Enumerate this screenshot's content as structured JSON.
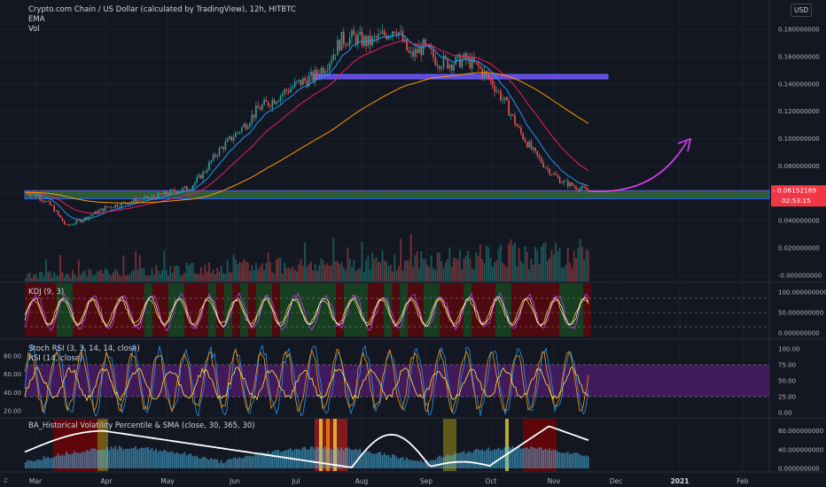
{
  "header": {
    "title": "Crypto.com Chain / US Dollar (calculated by TradingView), 12h, HITBTC",
    "ema_label": "EMA",
    "vol_label": "Vol",
    "currency_button": "USD"
  },
  "price_tag": {
    "price": "0.06152189",
    "countdown": "02:53:15"
  },
  "left_corner_label": "Z",
  "colors": {
    "background": "#131722",
    "grid": "#1e222d",
    "up": "#26a69a",
    "down": "#ef5350",
    "price_tag": "#f23645",
    "purple_zone": "#7b1fa2",
    "support_zone": "#4caf50",
    "resistance_line": "#7c4dff",
    "arrow": "#e040fb",
    "ema_fast": "#2196f3",
    "ema_mid": "#e91e63",
    "ema_slow": "#ff9800",
    "hv_line": "#ffffff",
    "stoch_k": "#2196f3",
    "stoch_d": "#ff9800",
    "rsi_line": "#ffeb3b",
    "kdj_k": "#ffffff",
    "kdj_d": "#ffeb3b",
    "kdj_j": "#e040fb"
  },
  "chart_data": [
    {
      "type": "line",
      "title": "Crypto.com Chain / US Dollar (calculated by TradingView), 12h, HITBTC",
      "x_axis": {
        "ticks": [
          "Mar",
          "Apr",
          "May",
          "Jun",
          "Jul",
          "Aug",
          "Sep",
          "Oct",
          "Nov",
          "Dec",
          "2021",
          "Feb"
        ]
      },
      "y_axis": {
        "ticks": [
          "0.180000000",
          "0.160000000",
          "0.140000000",
          "0.120000000",
          "0.100000000",
          "0.080000000",
          "0.060000000",
          "0.040000000",
          "0.020000000",
          "-0.000000000"
        ],
        "ylim": [
          0,
          0.19
        ]
      },
      "series": [
        {
          "name": "",
          "values": [
            0.061,
            0.058,
            0.05,
            0.036,
            0.04,
            0.045,
            0.05,
            0.052,
            0.055,
            0.056,
            0.059,
            0.062,
            0.064,
            0.075,
            0.09,
            0.1,
            0.11,
            0.122,
            0.128,
            0.135,
            0.141,
            0.145,
            0.155,
            0.172,
            0.174,
            0.17,
            0.175,
            0.182,
            0.16,
            0.167,
            0.157,
            0.155,
            0.158,
            0.152,
            0.141,
            0.125,
            0.105,
            0.09,
            0.078,
            0.069,
            0.065,
            0.062
          ]
        }
      ],
      "annotations": {
        "resistance_level": 0.145,
        "support_zone": [
          0.056,
          0.062
        ]
      }
    },
    {
      "type": "line",
      "title": "KDJ (9, 3)",
      "y_axis": {
        "ticks": [
          "100.000000000",
          "50.000000000",
          "0.000000000"
        ],
        "ylim": [
          -5,
          110
        ]
      }
    },
    {
      "type": "line",
      "title": "Stoch RSI (3, 3, 14, 14, close)",
      "subtitle": "RSI (14, close)",
      "y_axis": {
        "left_ticks": [
          "80.00",
          "60.00",
          "40.00",
          "20.00"
        ],
        "right_ticks": [
          "100.00",
          "75.00",
          "50.00",
          "25.00",
          "0.00"
        ]
      }
    },
    {
      "type": "area",
      "title": "BA_Historical Volatility Percentile & SMA (close, 30, 365, 30)",
      "y_axis": {
        "ticks": [
          "80.000000000",
          "40.000000000",
          "0.000000000"
        ],
        "ylim": [
          0,
          100
        ]
      }
    }
  ]
}
